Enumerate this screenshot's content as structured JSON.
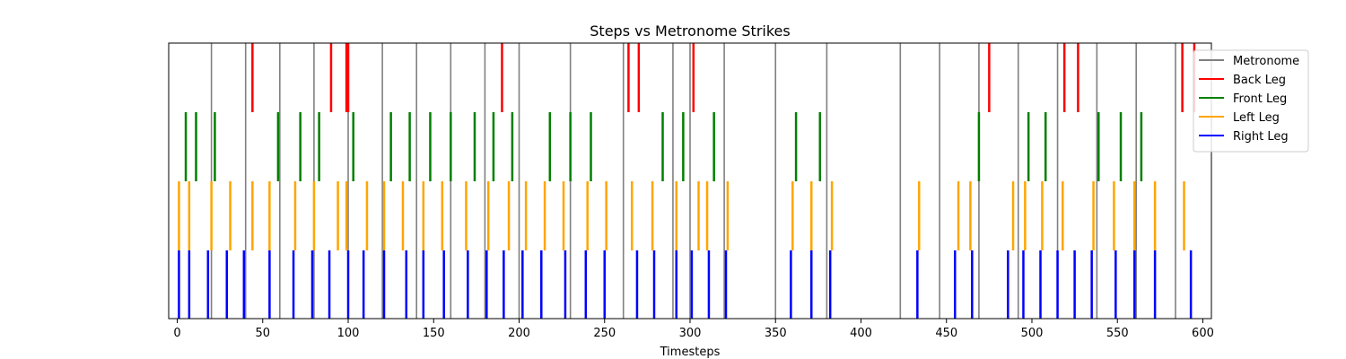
{
  "chart_data": {
    "type": "eventplot",
    "title": "Steps vs Metronome Strikes",
    "xlabel": "Timesteps",
    "ylabel": "",
    "xlim": [
      -5,
      605
    ],
    "xticks": [
      0,
      50,
      100,
      150,
      200,
      250,
      300,
      350,
      400,
      450,
      500,
      550,
      600
    ],
    "grid": false,
    "legend_position": "upper-right-outside",
    "series": [
      {
        "name": "Metronome",
        "color": "#808080",
        "band": "full",
        "x": [
          20,
          40,
          60,
          80,
          100,
          120,
          140,
          160,
          180,
          200,
          230,
          261,
          290,
          300,
          320,
          350,
          380,
          423,
          446,
          469,
          492,
          515,
          538,
          561,
          584
        ]
      },
      {
        "name": "Back Leg",
        "color": "#ff0000",
        "band": "back",
        "x": [
          44,
          90,
          99,
          100,
          190,
          264,
          270,
          302,
          475,
          519,
          527,
          588,
          595
        ]
      },
      {
        "name": "Front Leg",
        "color": "#008000",
        "band": "front",
        "x": [
          5,
          11,
          22,
          59,
          72,
          83,
          103,
          125,
          136,
          148,
          160,
          174,
          185,
          196,
          218,
          230,
          242,
          284,
          296,
          314,
          362,
          376,
          469,
          498,
          508,
          539,
          552,
          564
        ]
      },
      {
        "name": "Left Leg",
        "color": "#ffa500",
        "band": "left",
        "x": [
          1,
          7,
          20,
          31,
          44,
          54,
          69,
          80,
          94,
          99,
          111,
          121,
          132,
          144,
          155,
          169,
          182,
          194,
          204,
          215,
          226,
          240,
          251,
          266,
          278,
          292,
          305,
          310,
          322,
          360,
          371,
          383,
          434,
          457,
          464,
          489,
          496,
          506,
          518,
          536,
          548,
          560,
          572,
          589
        ]
      },
      {
        "name": "Right Leg",
        "color": "#0000ff",
        "band": "right",
        "x": [
          1,
          7,
          18,
          29,
          39,
          54,
          68,
          79,
          89,
          100,
          109,
          121,
          134,
          144,
          156,
          170,
          181,
          191,
          202,
          213,
          227,
          239,
          250,
          269,
          279,
          292,
          301,
          311,
          321,
          359,
          371,
          382,
          433,
          455,
          465,
          486,
          495,
          505,
          515,
          525,
          535,
          549,
          560,
          572,
          593
        ]
      }
    ]
  }
}
